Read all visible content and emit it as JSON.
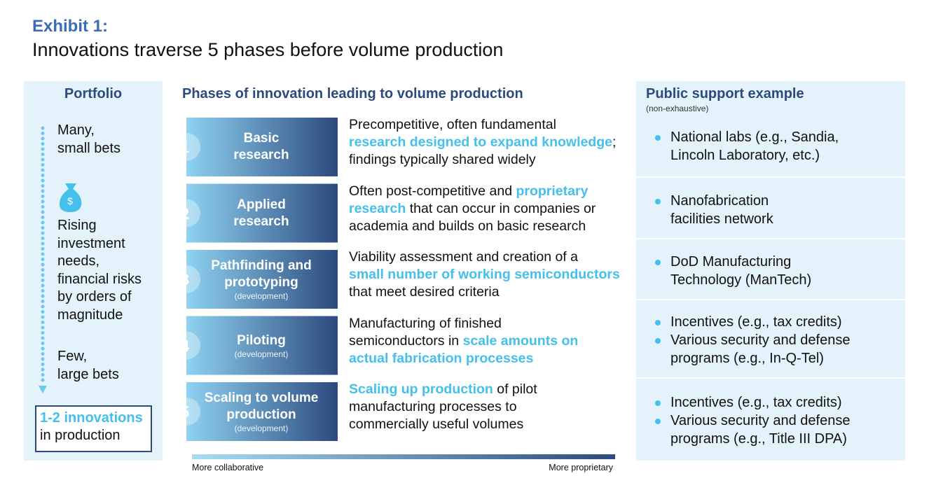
{
  "header": {
    "label": "Exhibit 1:",
    "title": "Innovations traverse 5 phases before volume production"
  },
  "portfolio": {
    "title": "Portfolio",
    "top": [
      "Many,",
      "small bets"
    ],
    "middle": [
      "Rising",
      "investment",
      "needs,",
      "financial risks",
      "by orders of",
      "magnitude"
    ],
    "bottom": [
      "Few,",
      "large bets"
    ],
    "result": {
      "highlight": "1-2 innovations",
      "text": "in production"
    }
  },
  "phases": {
    "title": "Phases of innovation leading to volume production",
    "items": [
      {
        "number": "1",
        "name": [
          "Basic",
          "research"
        ],
        "description": [
          [
            {
              "text": "Precompetitive, often fundamental",
              "highlight": false
            }
          ],
          [
            {
              "text": "research designed to expand knowledge",
              "highlight": true
            },
            {
              "text": ";",
              "highlight": false
            }
          ],
          [
            {
              "text": "findings typically shared widely",
              "highlight": false
            }
          ]
        ]
      },
      {
        "number": "2",
        "name": [
          "Applied",
          "research"
        ],
        "description": [
          [
            {
              "text": "Often post-competitive and ",
              "highlight": false
            },
            {
              "text": "proprietary",
              "highlight": true
            }
          ],
          [
            {
              "text": "research",
              "highlight": true
            },
            {
              "text": " that can occur in companies or",
              "highlight": false
            }
          ],
          [
            {
              "text": "academia and builds on basic research",
              "highlight": false
            }
          ]
        ]
      },
      {
        "number": "3",
        "name": [
          "Pathfinding and",
          "prototyping"
        ],
        "note": "(development)",
        "description": [
          [
            {
              "text": "Viability assessment and creation of a",
              "highlight": false
            }
          ],
          [
            {
              "text": "small number of working semiconductors",
              "highlight": true
            }
          ],
          [
            {
              "text": "that meet desired criteria",
              "highlight": false
            }
          ]
        ]
      },
      {
        "number": "4",
        "name": [
          "Piloting"
        ],
        "note": "(development)",
        "description": [
          [
            {
              "text": "Manufacturing of finished",
              "highlight": false
            }
          ],
          [
            {
              "text": "semiconductors in ",
              "highlight": false
            },
            {
              "text": "scale amounts on",
              "highlight": true
            }
          ],
          [
            {
              "text": "actual fabrication processes",
              "highlight": true
            }
          ]
        ]
      },
      {
        "number": "5",
        "name": [
          "Scaling to volume",
          "production"
        ],
        "note": "(development)",
        "description": [
          [
            {
              "text": "Scaling up production",
              "highlight": true
            },
            {
              "text": " of pilot",
              "highlight": false
            }
          ],
          [
            {
              "text": "manufacturing processes to",
              "highlight": false
            }
          ],
          [
            {
              "text": "commercially useful volumes",
              "highlight": false
            }
          ]
        ]
      }
    ],
    "scale": {
      "left": "More collaborative",
      "right": "More proprietary"
    }
  },
  "support": {
    "title": "Public support example",
    "note": "(non-exhaustive)",
    "rows": [
      {
        "bullets": [
          [
            "National labs (e.g., Sandia,",
            "Lincoln Laboratory, etc.)"
          ]
        ]
      },
      {
        "bullets": [
          [
            "Nanofabrication",
            "facilities network"
          ]
        ]
      },
      {
        "bullets": [
          [
            "DoD Manufacturing",
            "Technology (ManTech)"
          ]
        ]
      },
      {
        "bullets": [
          [
            "Incentives (e.g., tax credits)"
          ],
          [
            "Various security and defense",
            "programs (e.g., In-Q-Tel)"
          ]
        ]
      },
      {
        "bullets": [
          [
            "Incentives (e.g., tax credits)"
          ],
          [
            "Various security and defense",
            "programs (e.g., Title III DPA)"
          ]
        ]
      }
    ]
  }
}
